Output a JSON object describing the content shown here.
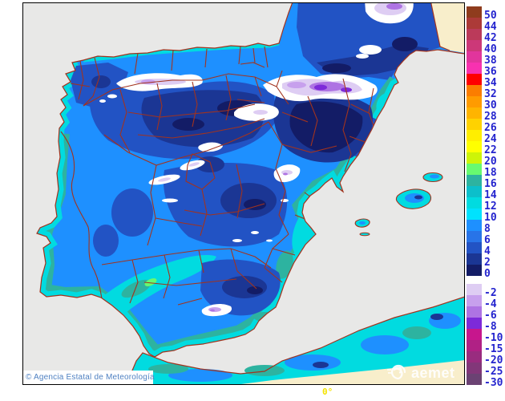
{
  "map": {
    "copyright": "© Agencia Estatal de Meteorología",
    "longitude_label": "0°",
    "sea_color": "#E8E8E7",
    "out_of_domain_color": "#F8EECB",
    "boundary_color": "#A2331E",
    "snow_color": "#FFFFFF"
  },
  "watermark": {
    "brand": "aemet"
  },
  "legend": {
    "label_color": "#2424CE",
    "entries": [
      {
        "value": "50",
        "color": "#8F3C1D"
      },
      {
        "value": "44",
        "color": "#AC3A38"
      },
      {
        "value": "42",
        "color": "#BB3A5A"
      },
      {
        "value": "40",
        "color": "#CC3878"
      },
      {
        "value": "38",
        "color": "#E1359C"
      },
      {
        "value": "36",
        "color": "#F831B0"
      },
      {
        "value": "34",
        "color": "#FE0000"
      },
      {
        "value": "32",
        "color": "#FB7D00"
      },
      {
        "value": "30",
        "color": "#FF9B00"
      },
      {
        "value": "28",
        "color": "#FFB400"
      },
      {
        "value": "26",
        "color": "#FFD200"
      },
      {
        "value": "24",
        "color": "#FFEE00"
      },
      {
        "value": "22",
        "color": "#FFFF00"
      },
      {
        "value": "20",
        "color": "#CDF408"
      },
      {
        "value": "18",
        "color": "#67FA70"
      },
      {
        "value": "16",
        "color": "#2DB3A0"
      },
      {
        "value": "14",
        "color": "#0CBFCB"
      },
      {
        "value": "12",
        "color": "#01DBE0"
      },
      {
        "value": "10",
        "color": "#00E2FE"
      },
      {
        "value": "8",
        "color": "#1E90FF"
      },
      {
        "value": "6",
        "color": "#2874E8"
      },
      {
        "value": "4",
        "color": "#2253C4"
      },
      {
        "value": "2",
        "color": "#1B3694"
      },
      {
        "value": "0",
        "color": "#131C66"
      },
      {
        "value": "-2",
        "color": "#DECDF3",
        "gap_before": true
      },
      {
        "value": "-4",
        "color": "#C7A0ED"
      },
      {
        "value": "-6",
        "color": "#AE73E3"
      },
      {
        "value": "-8",
        "color": "#7D2AD9"
      },
      {
        "value": "-10",
        "color": "#C7168D"
      },
      {
        "value": "-15",
        "color": "#B02185"
      },
      {
        "value": "-20",
        "color": "#992C7F"
      },
      {
        "value": "-25",
        "color": "#823779"
      },
      {
        "value": "-30",
        "color": "#6B4273"
      }
    ]
  }
}
